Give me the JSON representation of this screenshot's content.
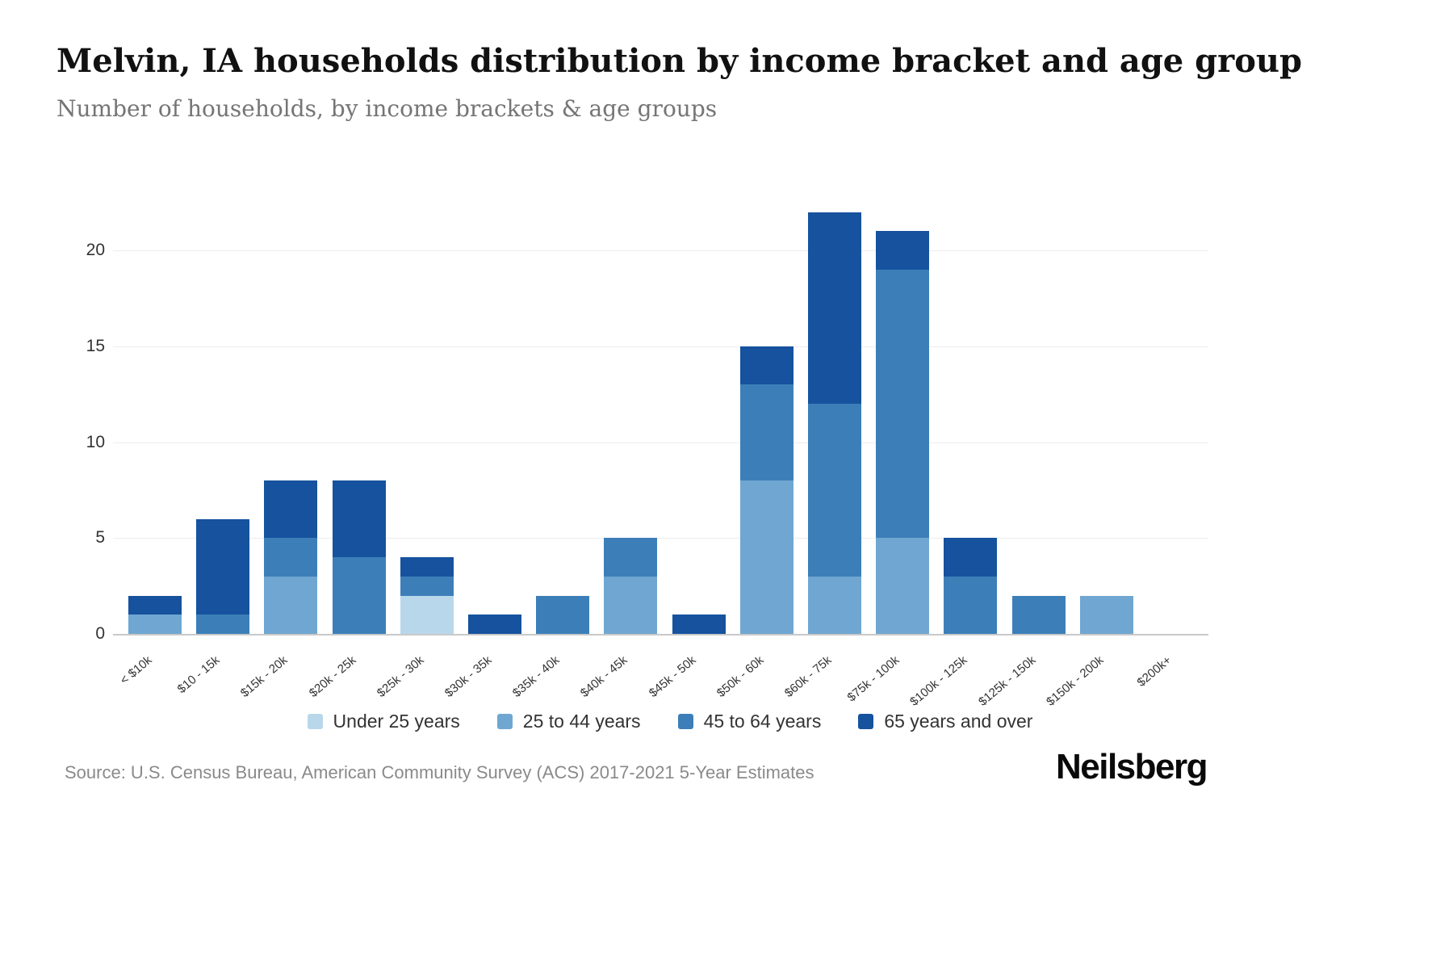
{
  "chart_data": {
    "type": "bar",
    "stacked": true,
    "title": "Melvin, IA households distribution by income bracket and age group",
    "subtitle": "Number of households, by income brackets & age groups",
    "categories": [
      "< $10k",
      "$10 - 15k",
      "$15k - 20k",
      "$20k - 25k",
      "$25k - 30k",
      "$30k - 35k",
      "$35k - 40k",
      "$40k - 45k",
      "$45k - 50k",
      "$50k - 60k",
      "$60k - 75k",
      "$75k - 100k",
      "$100k - 125k",
      "$125k - 150k",
      "$150k - 200k",
      "$200k+"
    ],
    "series": [
      {
        "name": "Under 25 years",
        "color": "#b9d7ea",
        "values": [
          0,
          0,
          0,
          0,
          2,
          0,
          0,
          0,
          0,
          0,
          0,
          0,
          0,
          0,
          0,
          0
        ]
      },
      {
        "name": "25 to 44 years",
        "color": "#6fa7d2",
        "values": [
          1,
          0,
          3,
          0,
          0,
          0,
          0,
          3,
          0,
          8,
          3,
          5,
          0,
          0,
          2,
          0
        ]
      },
      {
        "name": "45 to 64 years",
        "color": "#3c7fb8",
        "values": [
          0,
          1,
          2,
          4,
          1,
          0,
          2,
          2,
          0,
          5,
          9,
          14,
          3,
          2,
          0,
          0
        ]
      },
      {
        "name": "65 years and over",
        "color": "#16529e",
        "values": [
          1,
          5,
          3,
          4,
          1,
          1,
          0,
          0,
          1,
          2,
          10,
          2,
          2,
          0,
          0,
          0
        ]
      }
    ],
    "yticks": [
      0,
      5,
      10,
      15,
      20
    ],
    "ylim": [
      0,
      22
    ],
    "grid": true,
    "legend_position": "bottom",
    "ylabel": "",
    "xlabel": ""
  },
  "footer": {
    "source": "Source: U.S. Census Bureau, American Community Survey (ACS) 2017-2021 5-Year Estimates",
    "brand": "Neilsberg"
  }
}
